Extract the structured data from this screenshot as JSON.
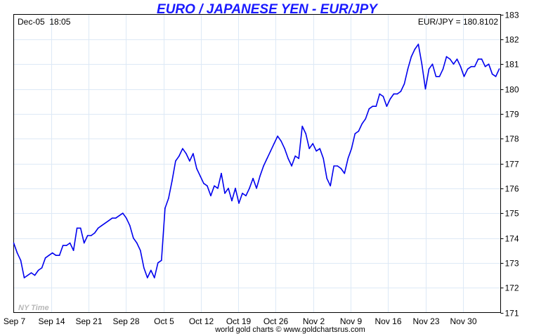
{
  "chart_data": {
    "type": "line",
    "title": "EURO / JAPANESE YEN - EUR/JPY",
    "timestamp": "Dec-05  18:05",
    "current_label": "EUR/JPY = 180.8102",
    "timezone_label": "NY Time",
    "footer": "world gold charts © www.goldchartsrus.com",
    "xlabel": "",
    "ylabel": "",
    "ylim": [
      171,
      183
    ],
    "xlim_days": [
      0,
      91.05
    ],
    "yticks": [
      171,
      172,
      173,
      174,
      175,
      176,
      177,
      178,
      179,
      180,
      181,
      182,
      183
    ],
    "xticks": [
      {
        "label": "Sep 7",
        "day": 0
      },
      {
        "label": "Sep 14",
        "day": 7
      },
      {
        "label": "Sep 21",
        "day": 14
      },
      {
        "label": "Sep 28",
        "day": 21
      },
      {
        "label": "Oct 5",
        "day": 28
      },
      {
        "label": "Oct 12",
        "day": 35
      },
      {
        "label": "Oct 19",
        "day": 42
      },
      {
        "label": "Oct 26",
        "day": 49
      },
      {
        "label": "Nov 2",
        "day": 56
      },
      {
        "label": "Nov 9",
        "day": 63
      },
      {
        "label": "Nov 16",
        "day": 70
      },
      {
        "label": "Nov 23",
        "day": 77
      },
      {
        "label": "Nov 30",
        "day": 84
      }
    ],
    "grid": true,
    "line_color": "#0000ee",
    "series": [
      {
        "name": "EUR/JPY",
        "start_day": 0,
        "step_days": 0.658,
        "values": [
          173.8,
          173.4,
          173.1,
          172.4,
          172.5,
          172.6,
          172.5,
          172.7,
          172.8,
          173.2,
          173.3,
          173.4,
          173.3,
          173.3,
          173.7,
          173.7,
          173.8,
          173.5,
          174.4,
          174.4,
          173.8,
          174.1,
          174.1,
          174.2,
          174.4,
          174.5,
          174.6,
          174.7,
          174.8,
          174.8,
          174.9,
          175.0,
          174.8,
          174.5,
          174.0,
          173.8,
          173.5,
          172.8,
          172.4,
          172.7,
          172.4,
          173.0,
          173.1,
          175.2,
          175.6,
          176.3,
          177.1,
          177.3,
          177.6,
          177.4,
          177.1,
          177.4,
          176.8,
          176.5,
          176.2,
          176.1,
          175.7,
          176.1,
          176.0,
          176.6,
          175.8,
          176.0,
          175.5,
          176.0,
          175.4,
          175.8,
          175.7,
          176.0,
          176.4,
          176.0,
          176.5,
          176.9,
          177.2,
          177.5,
          177.8,
          178.1,
          177.9,
          177.6,
          177.2,
          176.9,
          177.3,
          177.2,
          178.5,
          178.2,
          177.6,
          177.8,
          177.5,
          177.6,
          177.2,
          176.4,
          176.1,
          176.9,
          176.9,
          176.8,
          176.6,
          177.2,
          177.6,
          178.2,
          178.3,
          178.6,
          178.8,
          179.2,
          179.3,
          179.3,
          179.8,
          179.7,
          179.3,
          179.6,
          179.8,
          179.8,
          179.9,
          180.2,
          180.8,
          181.3,
          181.6,
          181.8,
          181.0,
          180.0,
          180.8,
          181.0,
          180.5,
          180.5,
          180.8,
          181.3,
          181.2,
          181.0,
          181.2,
          180.9,
          180.5,
          180.8,
          180.9,
          180.9,
          181.2,
          181.2,
          180.9,
          181.0,
          180.6,
          180.5,
          180.81
        ]
      }
    ]
  }
}
